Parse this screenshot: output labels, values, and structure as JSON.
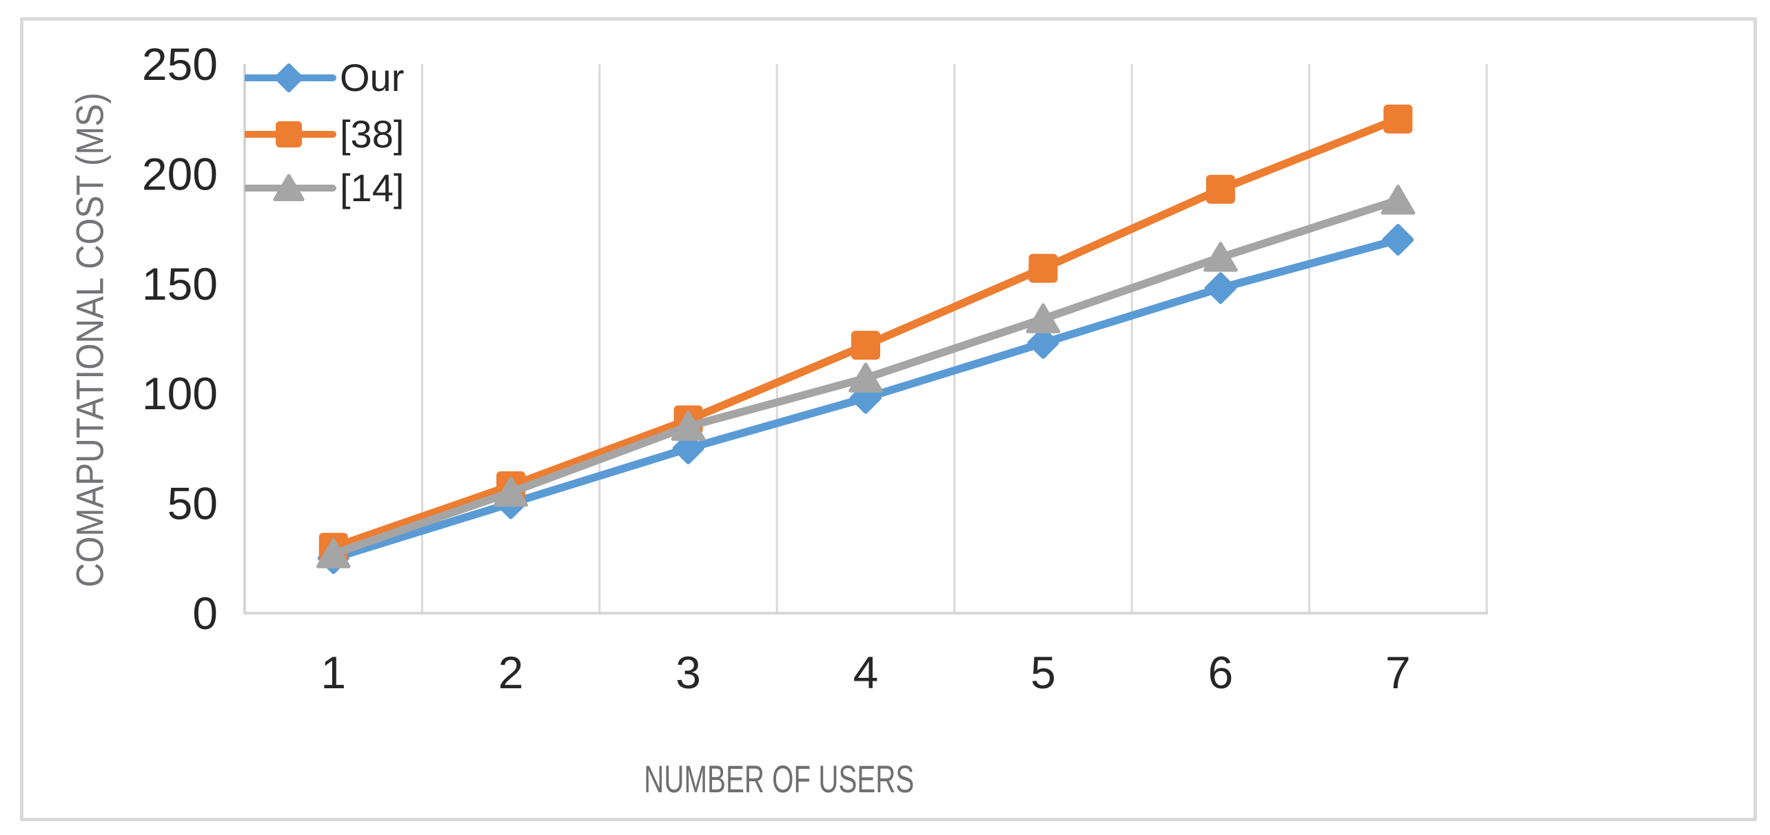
{
  "figure": {
    "kind": "line-chart-figure",
    "background": "#FFFFFF"
  },
  "chart_data": {
    "type": "line",
    "title": "",
    "xlabel": "NUMBER OF USERS",
    "ylabel": "COMAPUTATIONAL COST (MS)",
    "categories": [
      1,
      2,
      3,
      4,
      5,
      6,
      7
    ],
    "x_tick_labels": [
      "1",
      "2",
      "3",
      "4",
      "5",
      "6",
      "7"
    ],
    "y_ticks": [
      0,
      50,
      100,
      150,
      200,
      250
    ],
    "y_tick_labels": [
      "0",
      "50",
      "100",
      "150",
      "200",
      "250"
    ],
    "ylim": [
      0,
      250
    ],
    "grid": "vertical-only",
    "legend_position": "top-left-inside",
    "series": [
      {
        "name": "Our",
        "color": "#5B9BD5",
        "marker": "diamond",
        "values": [
          25,
          50,
          75,
          98,
          123,
          148,
          170
        ]
      },
      {
        "name": "[38]",
        "color": "#ED7D31",
        "marker": "square",
        "values": [
          30,
          58,
          88,
          122,
          157,
          193,
          225
        ]
      },
      {
        "name": "[14]",
        "color": "#A5A5A5",
        "marker": "triangle",
        "values": [
          27,
          55,
          85,
          107,
          134,
          162,
          188
        ]
      }
    ]
  },
  "colors": {
    "gridline": "#D9D9D9",
    "axis_line": "#D6D6D6",
    "tick_text": "#262626",
    "axis_title_text": "#747478",
    "legend_text": "#262626",
    "card_border": "#D9D9D9",
    "background": "#FFFFFF"
  }
}
